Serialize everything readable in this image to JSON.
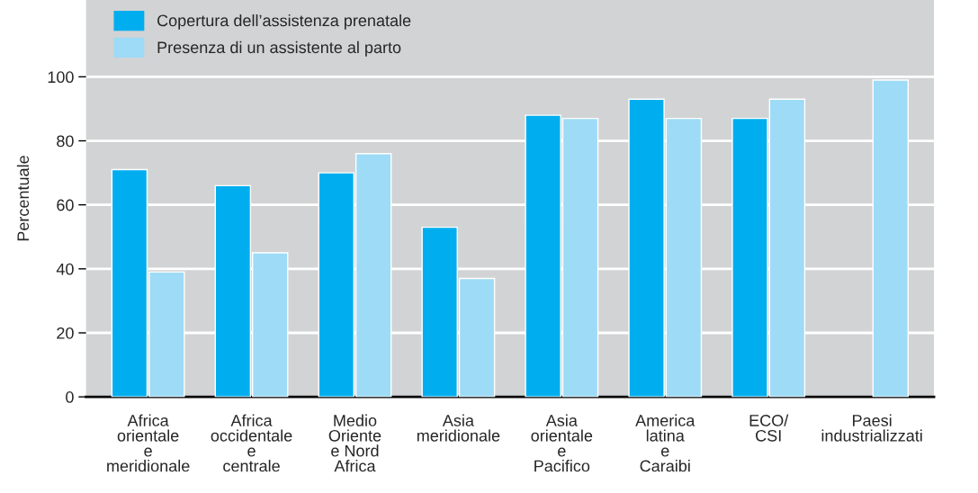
{
  "chart_data": {
    "type": "bar",
    "ylabel": "Percentuale",
    "categories": [
      "Africa\norientale\ne\nmeridionale",
      "Africa\noccidentale\ne\ncentrale",
      "Medio\nOriente\ne Nord\nAfrica",
      "Asia\nmeridionale",
      "Asia\norientale\ne\nPacifico",
      "America\nlatina\ne\nCaraibi",
      "ECO/\nCSI",
      "Paesi\nindustrializzati"
    ],
    "series": [
      {
        "name": "Copertura dell’assistenza prenatale",
        "color": "#00aeef",
        "values": [
          71,
          66,
          70,
          53,
          88,
          93,
          87,
          null
        ]
      },
      {
        "name": "Presenza di un assistente al parto",
        "color": "#9edbf7",
        "values": [
          39,
          45,
          76,
          37,
          87,
          87,
          93,
          99
        ]
      }
    ],
    "ylim": [
      0,
      124
    ],
    "yticks": [
      0,
      20,
      40,
      60,
      80,
      100
    ],
    "grid": "y",
    "legend": "top left"
  }
}
